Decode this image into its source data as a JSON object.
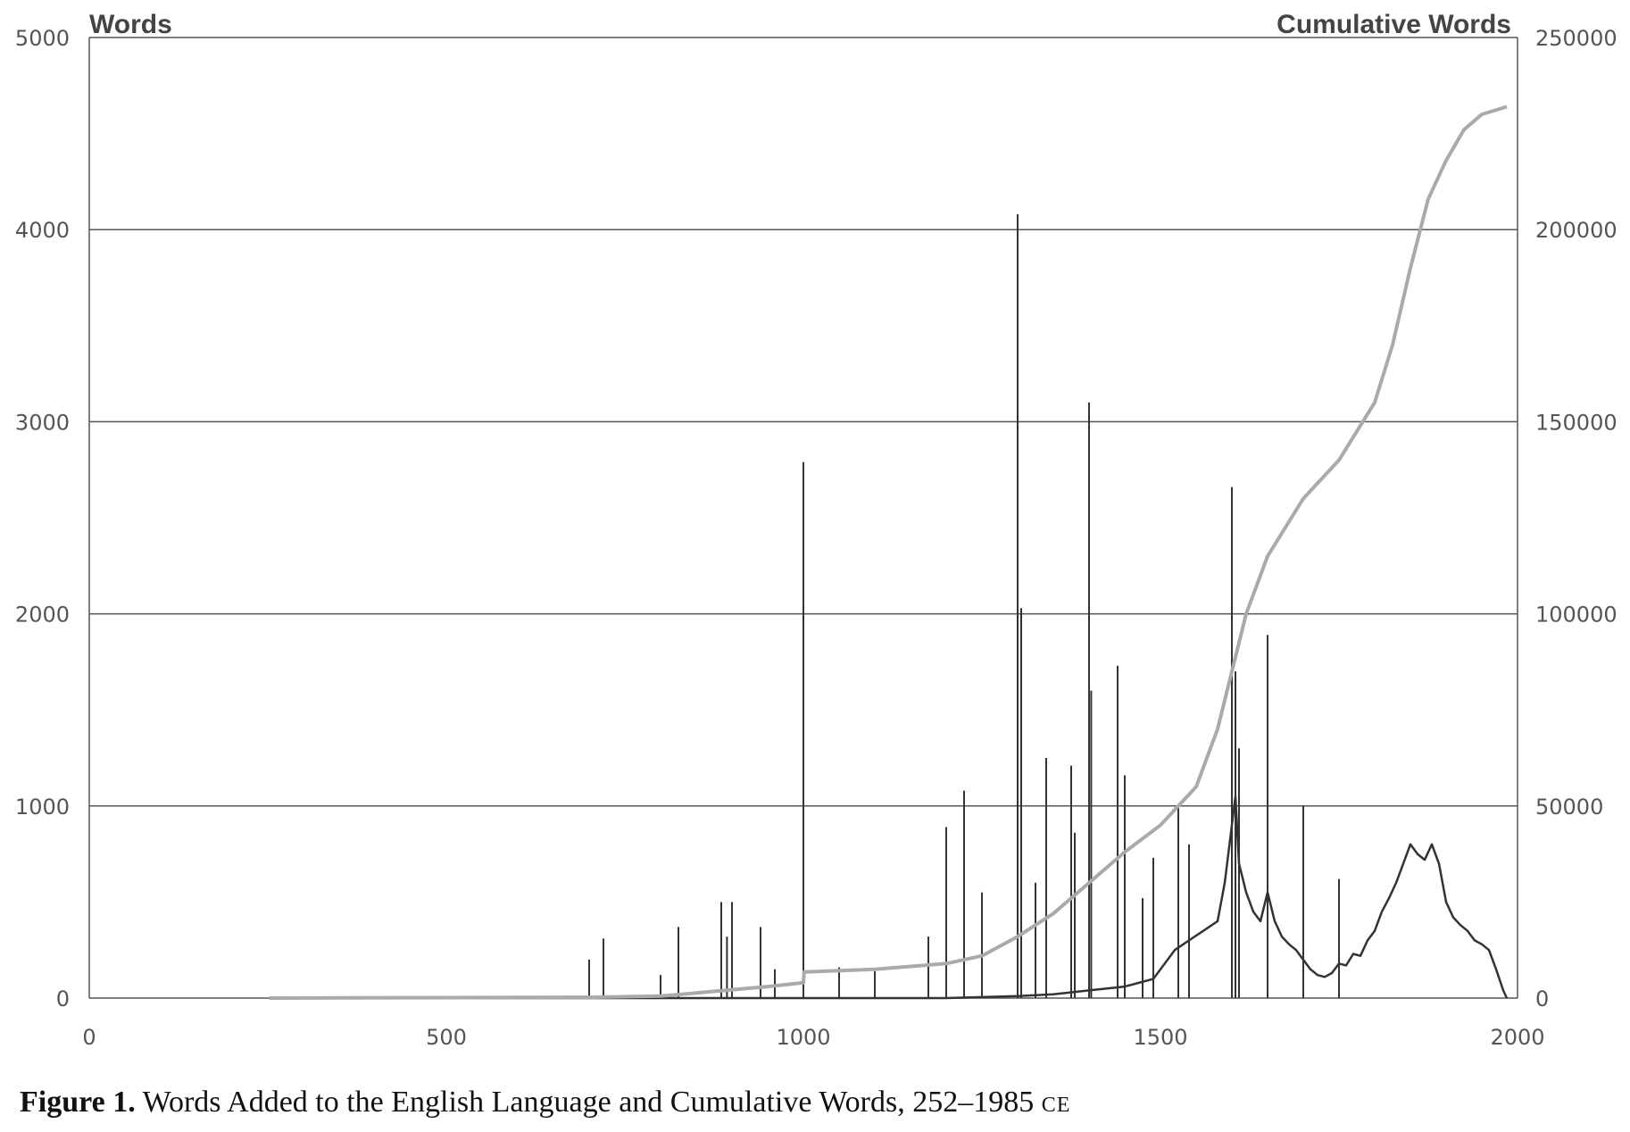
{
  "chart_data": {
    "type": "line",
    "x_range": [
      0,
      2000
    ],
    "x_ticks": [
      0,
      500,
      1000,
      1500,
      2000
    ],
    "y_left": {
      "title": "Words",
      "range": [
        0,
        5000
      ],
      "ticks": [
        0,
        1000,
        2000,
        3000,
        4000,
        5000
      ]
    },
    "y_right": {
      "title": "Cumulative Words",
      "range": [
        0,
        250000
      ],
      "ticks": [
        0,
        50000,
        100000,
        150000,
        200000,
        250000
      ]
    },
    "grid": true,
    "series": [
      {
        "axis": "left",
        "color": "#333333",
        "spikes": [
          [
            700,
            200
          ],
          [
            720,
            310
          ],
          [
            800,
            120
          ],
          [
            825,
            370
          ],
          [
            885,
            500
          ],
          [
            893,
            320
          ],
          [
            900,
            500
          ],
          [
            940,
            370
          ],
          [
            960,
            150
          ],
          [
            1000,
            2790
          ],
          [
            1050,
            160
          ],
          [
            1100,
            140
          ],
          [
            1175,
            320
          ],
          [
            1200,
            890
          ],
          [
            1225,
            1080
          ],
          [
            1250,
            550
          ],
          [
            1300,
            4080
          ],
          [
            1305,
            2030
          ],
          [
            1325,
            600
          ],
          [
            1340,
            1250
          ],
          [
            1375,
            1210
          ],
          [
            1380,
            860
          ],
          [
            1400,
            3100
          ],
          [
            1403,
            1600
          ],
          [
            1440,
            1730
          ],
          [
            1450,
            1160
          ],
          [
            1475,
            520
          ],
          [
            1490,
            730
          ],
          [
            1525,
            1000
          ],
          [
            1540,
            800
          ],
          [
            1600,
            2660
          ],
          [
            1605,
            1700
          ],
          [
            1610,
            1300
          ],
          [
            1650,
            1890
          ],
          [
            1700,
            1000
          ],
          [
            1750,
            620
          ]
        ],
        "trend": [
          [
            252,
            0
          ],
          [
            1000,
            0
          ],
          [
            1100,
            0
          ],
          [
            1200,
            0
          ],
          [
            1250,
            5
          ],
          [
            1300,
            10
          ],
          [
            1350,
            20
          ],
          [
            1400,
            40
          ],
          [
            1450,
            60
          ],
          [
            1490,
            100
          ],
          [
            1500,
            150
          ],
          [
            1520,
            250
          ],
          [
            1540,
            300
          ],
          [
            1560,
            350
          ],
          [
            1580,
            400
          ],
          [
            1590,
            600
          ],
          [
            1600,
            900
          ],
          [
            1605,
            1050
          ],
          [
            1610,
            700
          ],
          [
            1620,
            550
          ],
          [
            1630,
            450
          ],
          [
            1640,
            400
          ],
          [
            1650,
            550
          ],
          [
            1660,
            400
          ],
          [
            1670,
            320
          ],
          [
            1680,
            280
          ],
          [
            1690,
            250
          ],
          [
            1700,
            200
          ],
          [
            1710,
            150
          ],
          [
            1720,
            120
          ],
          [
            1730,
            110
          ],
          [
            1740,
            130
          ],
          [
            1750,
            180
          ],
          [
            1760,
            170
          ],
          [
            1770,
            230
          ],
          [
            1780,
            220
          ],
          [
            1790,
            300
          ],
          [
            1800,
            350
          ],
          [
            1810,
            450
          ],
          [
            1820,
            520
          ],
          [
            1830,
            600
          ],
          [
            1840,
            700
          ],
          [
            1850,
            800
          ],
          [
            1860,
            750
          ],
          [
            1870,
            720
          ],
          [
            1880,
            800
          ],
          [
            1890,
            700
          ],
          [
            1900,
            500
          ],
          [
            1910,
            420
          ],
          [
            1920,
            380
          ],
          [
            1930,
            350
          ],
          [
            1940,
            300
          ],
          [
            1950,
            280
          ],
          [
            1960,
            250
          ],
          [
            1970,
            150
          ],
          [
            1980,
            40
          ],
          [
            1985,
            0
          ]
        ]
      },
      {
        "axis": "right",
        "color": "#aaaaaa",
        "points": [
          [
            252,
            0
          ],
          [
            700,
            200
          ],
          [
            800,
            500
          ],
          [
            890,
            2000
          ],
          [
            950,
            3000
          ],
          [
            1000,
            4000
          ],
          [
            1001,
            6800
          ],
          [
            1100,
            7500
          ],
          [
            1200,
            9000
          ],
          [
            1250,
            11000
          ],
          [
            1300,
            16000
          ],
          [
            1350,
            22000
          ],
          [
            1400,
            30000
          ],
          [
            1450,
            38000
          ],
          [
            1500,
            45000
          ],
          [
            1550,
            55000
          ],
          [
            1580,
            70000
          ],
          [
            1600,
            85000
          ],
          [
            1620,
            100000
          ],
          [
            1650,
            115000
          ],
          [
            1700,
            130000
          ],
          [
            1750,
            140000
          ],
          [
            1800,
            155000
          ],
          [
            1825,
            170000
          ],
          [
            1850,
            190000
          ],
          [
            1875,
            208000
          ],
          [
            1900,
            218000
          ],
          [
            1925,
            226000
          ],
          [
            1950,
            230000
          ],
          [
            1985,
            232000
          ]
        ]
      }
    ]
  },
  "caption": {
    "label": "Figure 1.",
    "text": " Words Added to the English Language and Cumulative Words, 252–1985 ",
    "era": "CE"
  }
}
